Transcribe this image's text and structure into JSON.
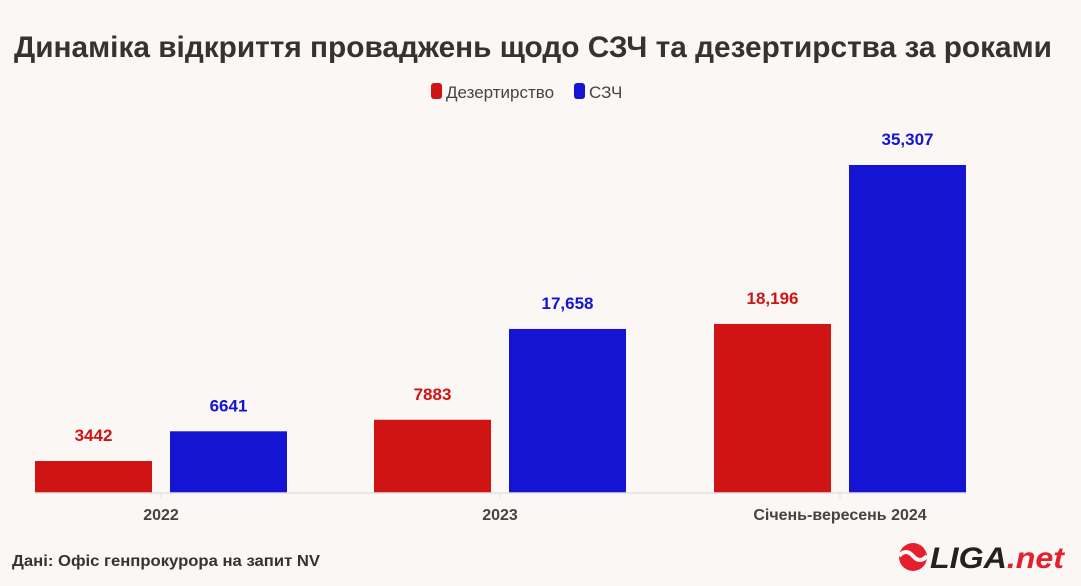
{
  "chart_data": {
    "type": "bar",
    "title": "Динаміка відкриття проваджень щодо СЗЧ та дезертирства за роками",
    "categories": [
      "2022",
      "2023",
      "Січень-вересень 2024"
    ],
    "series": [
      {
        "name": "Дезертирство",
        "color": "#d01414",
        "values": [
          3442,
          7883,
          18196
        ],
        "labels": [
          "3442",
          "7883",
          "18,196"
        ]
      },
      {
        "name": "СЗЧ",
        "color": "#1414d2",
        "values": [
          6641,
          17658,
          35307
        ],
        "labels": [
          "6641",
          "17,658",
          "35,307"
        ]
      }
    ],
    "ylim": [
      0,
      40000
    ],
    "grid": false,
    "legend": "top-center",
    "source": "Дані: Офіс генпрокурора на запит NV"
  },
  "logo": {
    "text": "LIGA.net",
    "main": "LIGA",
    "suffix": ".net",
    "color": "#e5202e"
  }
}
